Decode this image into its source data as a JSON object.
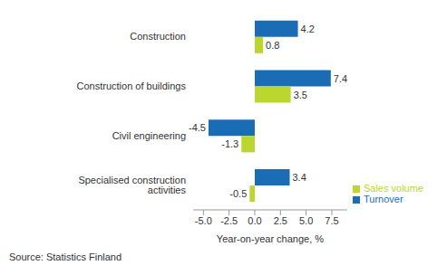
{
  "chart_data": {
    "type": "bar",
    "orientation": "horizontal",
    "categories": [
      "Construction",
      "Construction of buildings",
      "Civil engineering",
      "Specialised construction activities"
    ],
    "series": [
      {
        "name": "Turnover",
        "color": "#1a6db5",
        "values": [
          4.2,
          7.4,
          -4.5,
          3.4
        ]
      },
      {
        "name": "Sales volume",
        "color": "#bcd630",
        "values": [
          0.8,
          3.5,
          -1.3,
          -0.5
        ]
      }
    ],
    "xlabel": "Year-on-year change, %",
    "xlim": [
      -6,
      9
    ],
    "xticks": [
      {
        "value": -5,
        "label": "-5.0"
      },
      {
        "value": -2.5,
        "label": "-2.5"
      },
      {
        "value": 0,
        "label": "0.0"
      },
      {
        "value": 2.5,
        "label": "2.5"
      },
      {
        "value": 5,
        "label": "5.0"
      },
      {
        "value": 7.5,
        "label": "7.5"
      }
    ],
    "grid": false,
    "data_labels": true,
    "legend": "lower right",
    "source": "Source: Statistics Finland"
  }
}
